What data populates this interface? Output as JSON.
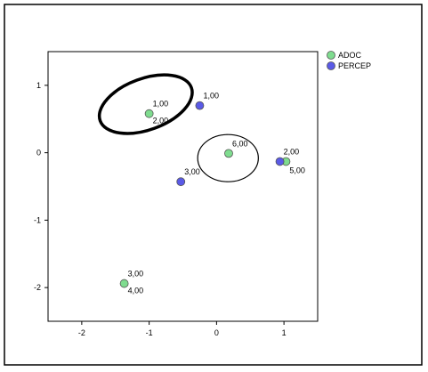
{
  "chart_data": {
    "type": "scatter",
    "title": "",
    "xlabel": "",
    "ylabel": "",
    "xlim": [
      -2.5,
      1.5
    ],
    "ylim": [
      -2.5,
      1.5
    ],
    "x_ticks": [
      -2,
      -1,
      0,
      1
    ],
    "y_ticks": [
      1,
      0,
      -1,
      -2
    ],
    "grid": false,
    "legend_position": "top-right",
    "series": [
      {
        "name": "ADOC",
        "color": "#7fdc8f",
        "points": [
          {
            "x": -1.0,
            "y": 0.58,
            "labels": [
              "1,00",
              "2,00"
            ]
          },
          {
            "x": 0.18,
            "y": -0.01,
            "labels": [
              "6,00"
            ]
          },
          {
            "x": 1.03,
            "y": -0.13,
            "labels": [
              "5,00"
            ]
          },
          {
            "x": -1.37,
            "y": -1.94,
            "labels": [
              "3,00",
              "4,00"
            ]
          }
        ]
      },
      {
        "name": "PERCEP",
        "color": "#5a5ae6",
        "points": [
          {
            "x": -0.25,
            "y": 0.7,
            "labels": [
              "1,00"
            ]
          },
          {
            "x": 0.94,
            "y": -0.13,
            "labels": [
              "2,00"
            ]
          },
          {
            "x": -0.53,
            "y": -0.43,
            "labels": [
              "3,00"
            ]
          }
        ]
      }
    ],
    "annotations": [
      {
        "shape": "ellipse",
        "stroke": "#000000",
        "style": "thick",
        "cx": -1.05,
        "cy": 0.72,
        "rx": 0.72,
        "ry": 0.38,
        "rotation_deg": -20
      },
      {
        "shape": "ellipse",
        "stroke": "#000000",
        "style": "thin",
        "cx": 0.17,
        "cy": -0.08,
        "rx": 0.45,
        "ry": 0.35,
        "rotation_deg": 0
      }
    ]
  }
}
